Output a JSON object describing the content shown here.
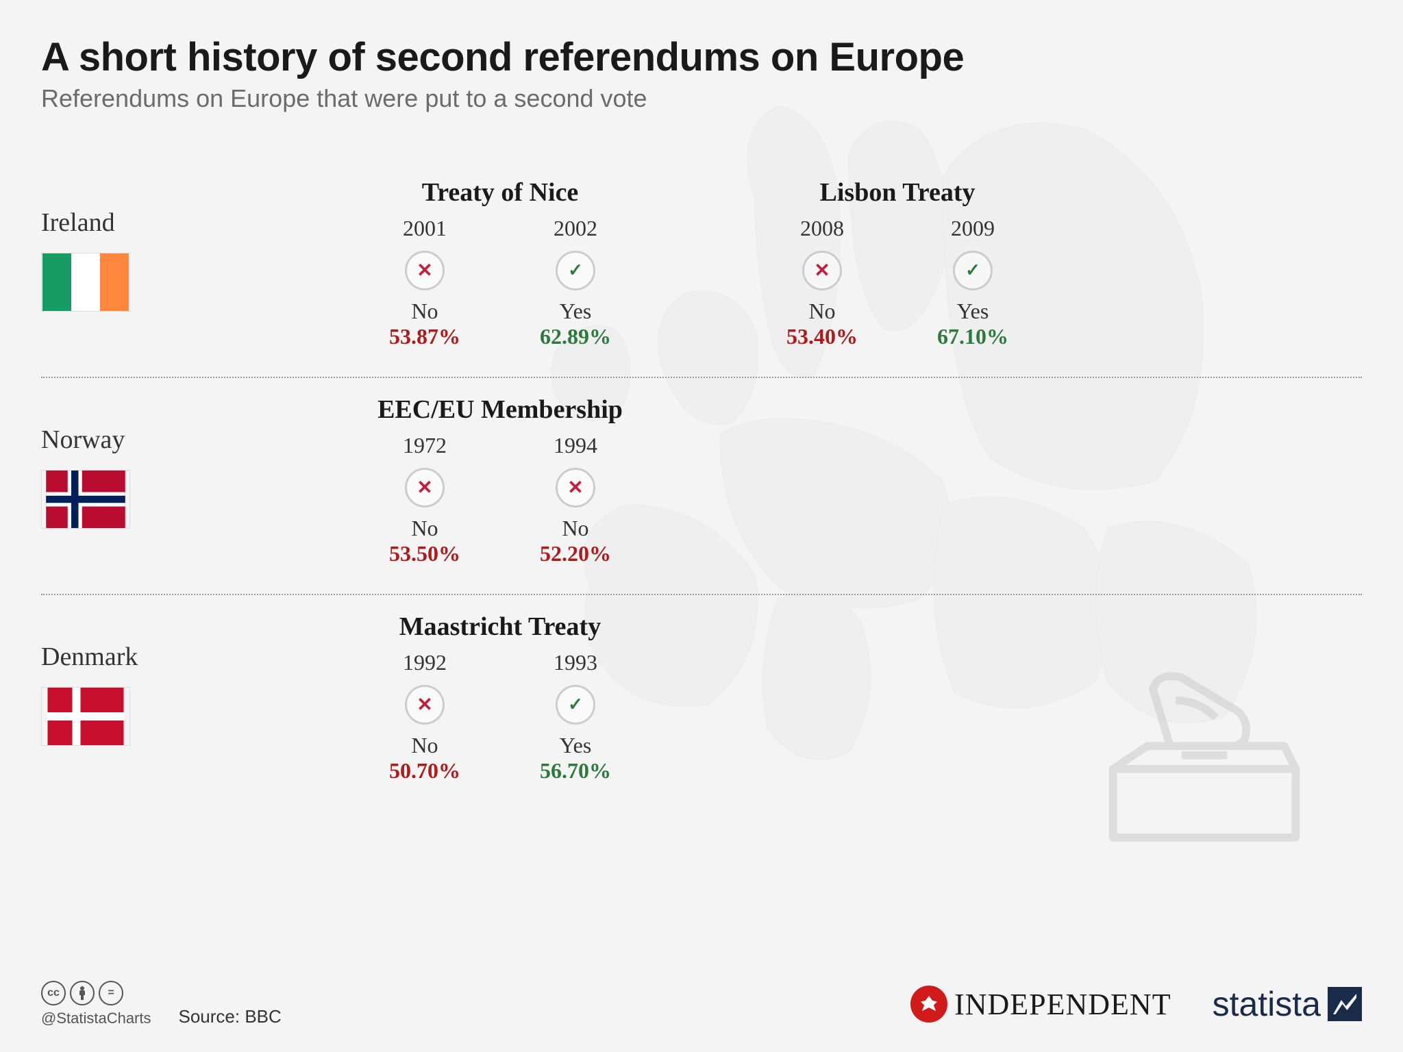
{
  "header": {
    "title": "A short history of second referendums on Europe",
    "subtitle": "Referendums on Europe that were put to a second vote"
  },
  "colors": {
    "no": "#b11a1a",
    "yes": "#2d7a3d",
    "text": "#333333",
    "title": "#1a1a1a",
    "subtitle": "#6b6b6b",
    "bg": "#f4f4f4",
    "circle_border": "#cccccc"
  },
  "countries": [
    {
      "name": "Ireland",
      "flag": "ireland",
      "treaties": [
        {
          "title": "Treaty of Nice",
          "votes": [
            {
              "year": "2001",
              "result": "No",
              "pct": "53.87%",
              "pass": false
            },
            {
              "year": "2002",
              "result": "Yes",
              "pct": "62.89%",
              "pass": true
            }
          ]
        },
        {
          "title": "Lisbon Treaty",
          "votes": [
            {
              "year": "2008",
              "result": "No",
              "pct": "53.40%",
              "pass": false
            },
            {
              "year": "2009",
              "result": "Yes",
              "pct": "67.10%",
              "pass": true
            }
          ]
        }
      ]
    },
    {
      "name": "Norway",
      "flag": "norway",
      "treaties": [
        {
          "title": "EEC/EU Membership",
          "votes": [
            {
              "year": "1972",
              "result": "No",
              "pct": "53.50%",
              "pass": false
            },
            {
              "year": "1994",
              "result": "No",
              "pct": "52.20%",
              "pass": false
            }
          ]
        }
      ]
    },
    {
      "name": "Denmark",
      "flag": "denmark",
      "treaties": [
        {
          "title": "Maastricht Treaty",
          "votes": [
            {
              "year": "1992",
              "result": "No",
              "pct": "50.70%",
              "pass": false
            },
            {
              "year": "1993",
              "result": "Yes",
              "pct": "56.70%",
              "pass": true
            }
          ]
        }
      ]
    }
  ],
  "footer": {
    "handle": "@StatistaCharts",
    "source": "Source: BBC",
    "brand1": "INDEPENDENT",
    "brand2": "statista"
  }
}
